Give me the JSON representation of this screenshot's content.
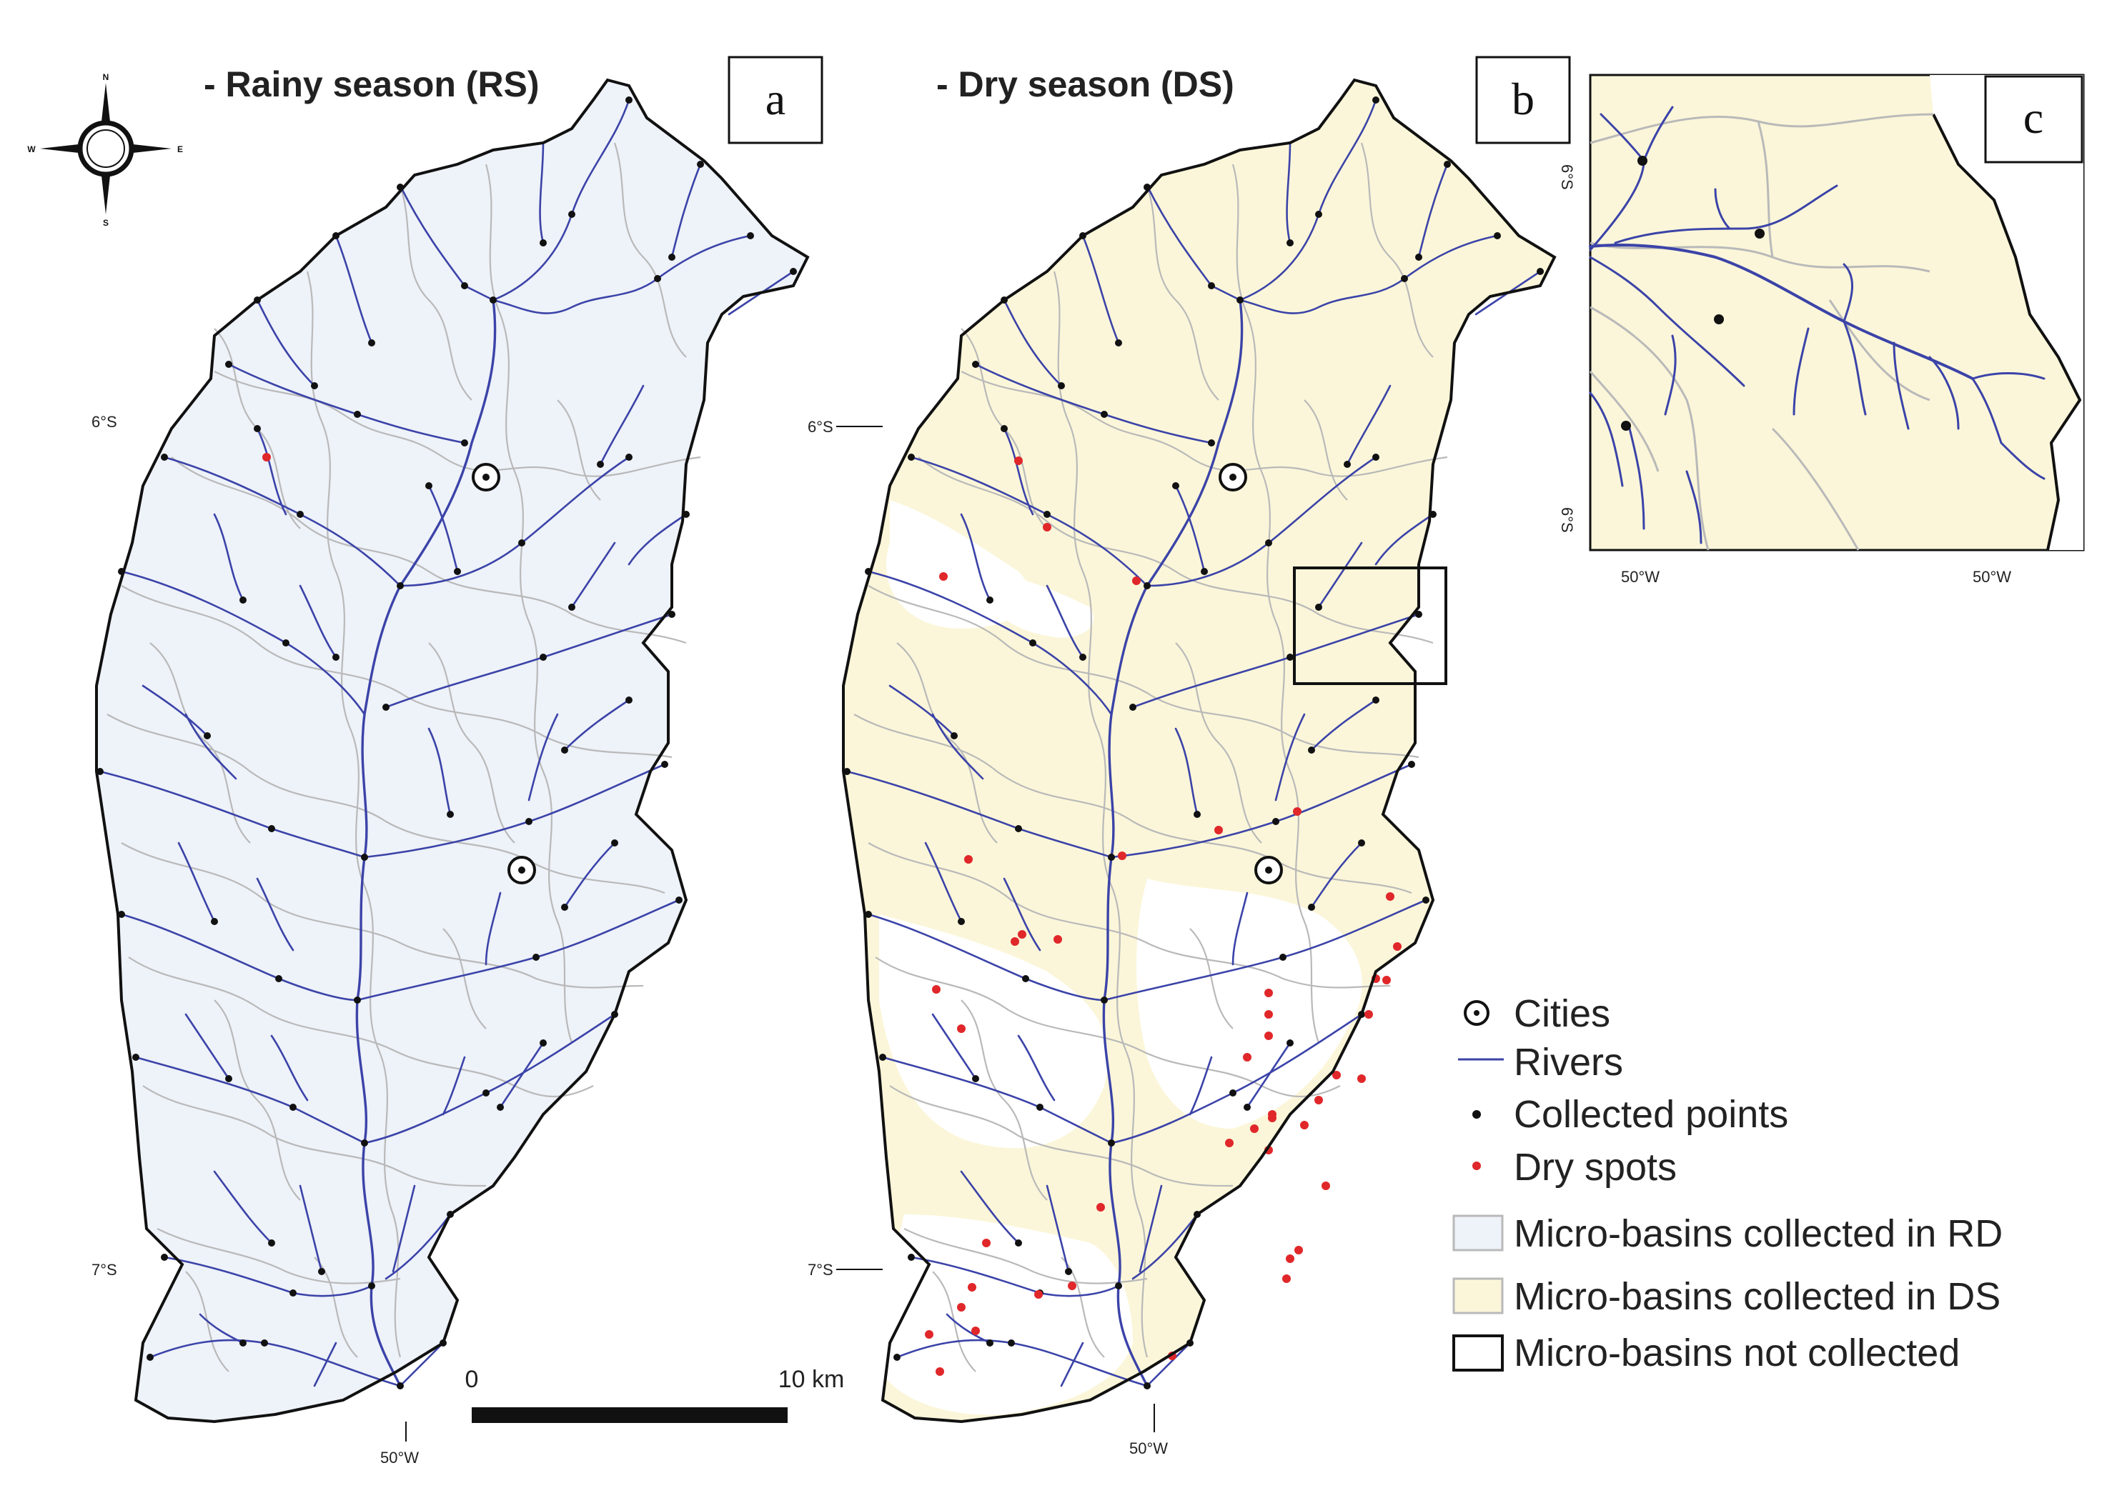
{
  "panels": {
    "a": {
      "title": "- Rainy season (RS)",
      "letter": "a",
      "lat_label": "6°S",
      "lat_label_2": "7°S",
      "lon_label": "50°W"
    },
    "b": {
      "title": "- Dry season (DS)",
      "letter": "b",
      "lat_label": "6°S",
      "lat_label_2": "7°S",
      "lon_label": "50°W"
    },
    "c": {
      "letter": "c",
      "lat_top": "6°S",
      "lat_bottom": "6°S",
      "lon_left": "50°W",
      "lon_right": "50°W"
    }
  },
  "compass": {
    "n": "N",
    "s": "S",
    "e": "E",
    "w": "W"
  },
  "scale_bar": {
    "start": "0",
    "end": "10 km"
  },
  "legend": {
    "cities": "Cities",
    "rivers": "Rivers",
    "collected": "Collected points",
    "dry": "Dry spots",
    "rd": "Micro-basins collected in RD",
    "ds": "Micro-basins collected in DS",
    "none": "Micro-basins not collected"
  },
  "colors": {
    "river": "#3b43a8",
    "basin_rs": "#eef2f9",
    "basin_ds": "#fbf6d9",
    "basin_border": "#b7b7b7",
    "outline": "#111111",
    "collected_point": "#111111",
    "dry_spot": "#e0272a"
  },
  "icons": {
    "city": "city-circle-dot-icon",
    "compass": "compass-rose-icon"
  }
}
